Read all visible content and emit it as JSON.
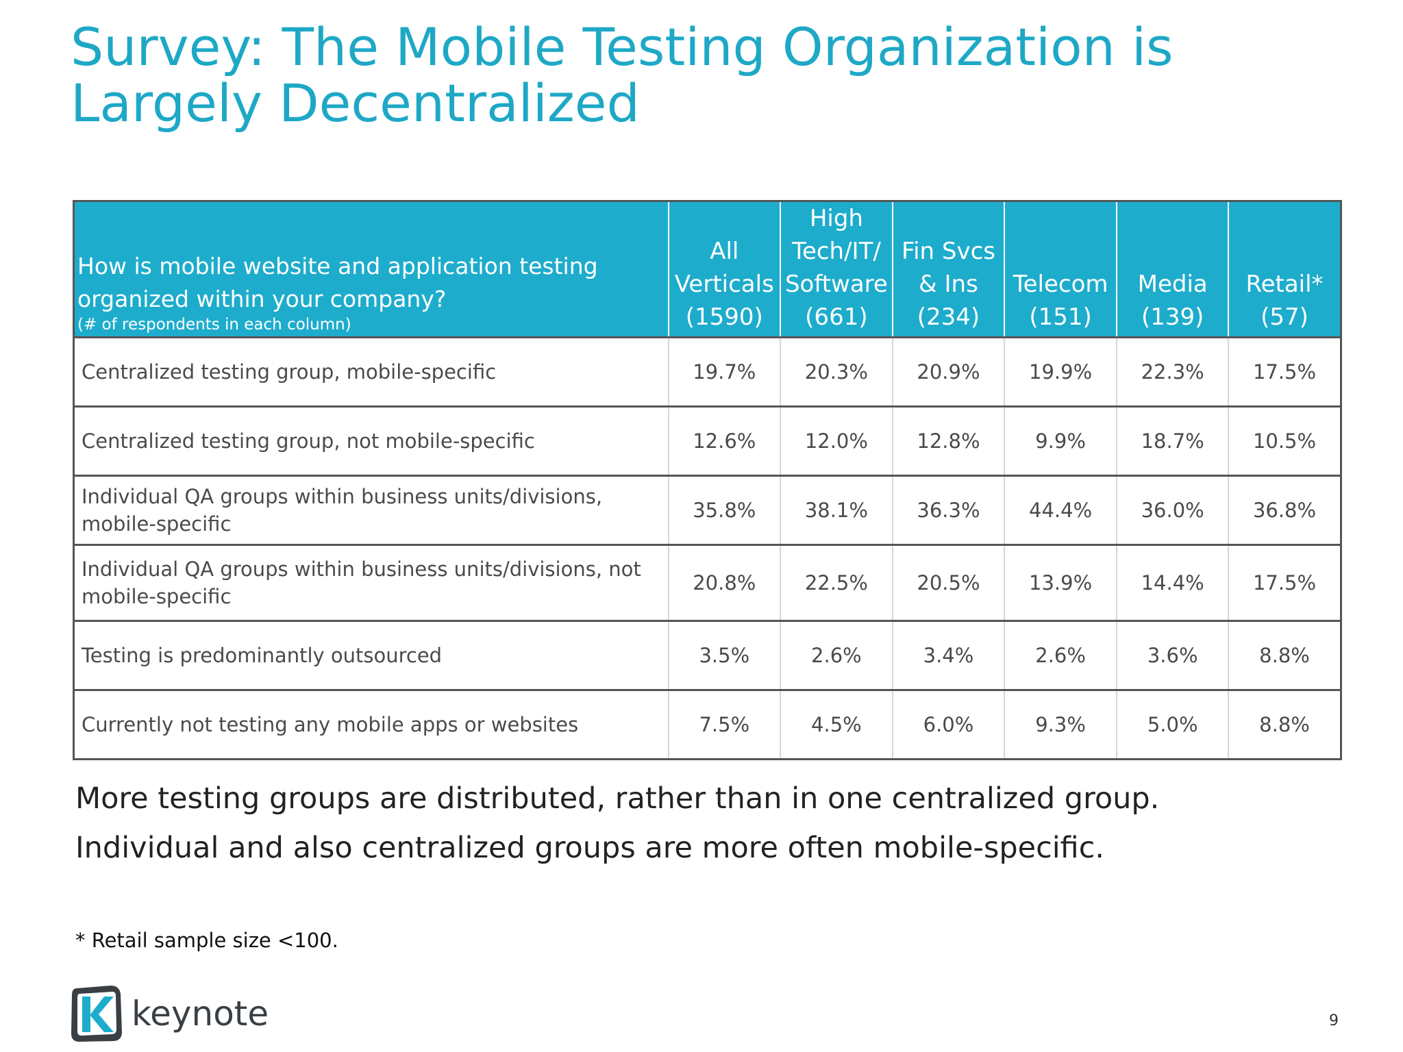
{
  "title": {
    "line1": "Survey: The Mobile Testing Organization is",
    "line2": "Largely Decentralized"
  },
  "table": {
    "question": "How is mobile website and application testing organized within your company?",
    "question_note": "(# of respondents in each column)",
    "columns": [
      {
        "lines": [
          "All",
          "Verticals",
          "(1590)"
        ]
      },
      {
        "lines": [
          "High",
          "Tech/IT/",
          "Software",
          "(661)"
        ]
      },
      {
        "lines": [
          "Fin Svcs",
          "& Ins",
          "(234)"
        ]
      },
      {
        "lines": [
          "Telecom",
          "(151)"
        ]
      },
      {
        "lines": [
          "Media",
          "(139)"
        ]
      },
      {
        "lines": [
          "Retail*",
          "(57)"
        ]
      }
    ],
    "rows": [
      {
        "label": "Centralized testing group, mobile-specific",
        "values": [
          "19.7%",
          "20.3%",
          "20.9%",
          "19.9%",
          "22.3%",
          "17.5%"
        ]
      },
      {
        "label": "Centralized testing group, not mobile-specific",
        "values": [
          "12.6%",
          "12.0%",
          "12.8%",
          "9.9%",
          "18.7%",
          "10.5%"
        ]
      },
      {
        "label": "Individual QA groups within business units/divisions, mobile-specific",
        "values": [
          "35.8%",
          "38.1%",
          "36.3%",
          "44.4%",
          "36.0%",
          "36.8%"
        ]
      },
      {
        "label": "Individual QA groups within business units/divisions, not mobile-specific",
        "values": [
          "20.8%",
          "22.5%",
          "20.5%",
          "13.9%",
          "14.4%",
          "17.5%"
        ]
      },
      {
        "label": "Testing is predominantly outsourced",
        "values": [
          "3.5%",
          "2.6%",
          "3.4%",
          "2.6%",
          "3.6%",
          "8.8%"
        ]
      },
      {
        "label": "Currently not  testing any mobile apps or websites",
        "values": [
          "7.5%",
          "4.5%",
          "6.0%",
          "9.3%",
          "5.0%",
          "8.8%"
        ]
      }
    ]
  },
  "summary": [
    "More testing groups are distributed, rather than in one centralized group.",
    "Individual and also centralized groups are more often mobile-specific."
  ],
  "footnote": "* Retail sample size <100.",
  "logo": {
    "text": "keynote",
    "icon": "keynote-logo-icon"
  },
  "page_number": "9",
  "colors": {
    "accent": "#1eaccc",
    "title": "#1ea8c6",
    "border": "#555555"
  }
}
